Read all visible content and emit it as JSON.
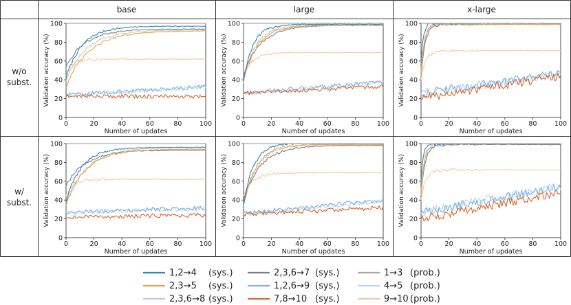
{
  "figure": {
    "columns": [
      "base",
      "large",
      "x-large"
    ],
    "rows": [
      {
        "line1": "w/o",
        "line2": "subst."
      },
      {
        "line1": "w/",
        "line2": "subst."
      }
    ],
    "reference_line_value": 100
  },
  "chart_data": {
    "type": "line",
    "xlabel": "Number of updates",
    "ylabel": "Validation accuracy (%)",
    "xlim": [
      0,
      100
    ],
    "ylim": [
      0,
      100
    ],
    "xticks": [
      "0",
      "20",
      "40",
      "60",
      "80",
      "100"
    ],
    "yticks": [
      "0",
      "20",
      "40",
      "60",
      "80",
      "100"
    ],
    "legend": [
      {
        "task": "1,2→4",
        "kind": "(sys.)",
        "color": "#2e86c1"
      },
      {
        "task": "2,3→5",
        "kind": "(sys.)",
        "color": "#f0a04b"
      },
      {
        "task": "2,3,6→8",
        "kind": "(sys.)",
        "color": "#c8c8c8"
      },
      {
        "task": "2,3,6→7",
        "kind": "(sys.)",
        "color": "#7f7f7f"
      },
      {
        "task": "1,2,6→9",
        "kind": "(sys.)",
        "color": "#7fb2e0"
      },
      {
        "task": "7,8→10",
        "kind": "(sys.)",
        "color": "#d9652b"
      },
      {
        "task": "1→3",
        "kind": "(prob.)",
        "color": "#a8a8a8"
      },
      {
        "task": "4→5",
        "kind": "(prob.)",
        "color": "#b8d6f2"
      },
      {
        "task": "9→10",
        "kind": "(prob.)",
        "color": "#f9c79b"
      }
    ],
    "panels": [
      {
        "row": "w/o subst.",
        "column": "base",
        "series": {
          "1,2→4 (sys.)": {
            "start": 42,
            "final": 97,
            "rate": 0.085
          },
          "2,3→5 (sys.)": {
            "start": 33,
            "final": 92,
            "rate": 0.06
          },
          "2,3,6→8 (sys.)": {
            "start": 40,
            "final": 93,
            "rate": 0.065
          },
          "2,3,6→7 (sys.)": {
            "start": 55,
            "final": 94,
            "rate": 0.07
          },
          "1,2,6→9 (sys.)": {
            "start": 24,
            "final": 33,
            "rate": 0.02
          },
          "7,8→10 (sys.)": {
            "start": 23,
            "final": 22,
            "rate": 0.05
          },
          "1→3 (prob.)": {
            "start": 100,
            "final": 100,
            "rate": 1.0
          },
          "4→5 (prob.)": {
            "start": 24,
            "final": 32,
            "rate": 0.02
          },
          "9→10 (prob.)": {
            "start": 45,
            "final": 62,
            "rate": 0.2
          }
        }
      },
      {
        "row": "w/o subst.",
        "column": "large",
        "series": {
          "1,2→4 (sys.)": {
            "start": 40,
            "final": 99,
            "rate": 0.14
          },
          "2,3→5 (sys.)": {
            "start": 38,
            "final": 98,
            "rate": 0.1
          },
          "2,3,6→8 (sys.)": {
            "start": 40,
            "final": 98,
            "rate": 0.11
          },
          "2,3,6→7 (sys.)": {
            "start": 45,
            "final": 98,
            "rate": 0.08
          },
          "1,2,6→9 (sys.)": {
            "start": 26,
            "final": 38,
            "rate": 0.02
          },
          "7,8→10 (sys.)": {
            "start": 26,
            "final": 33,
            "rate": 0.02
          },
          "1→3 (prob.)": {
            "start": 100,
            "final": 100,
            "rate": 1.0
          },
          "4→5 (prob.)": {
            "start": 25,
            "final": 37,
            "rate": 0.02
          },
          "9→10 (prob.)": {
            "start": 45,
            "final": 69,
            "rate": 0.15
          }
        }
      },
      {
        "row": "w/o subst.",
        "column": "x-large",
        "series": {
          "1,2→4 (sys.)": {
            "start": 60,
            "final": 100,
            "rate": 0.6
          },
          "2,3→5 (sys.)": {
            "start": 45,
            "final": 99,
            "rate": 0.45
          },
          "2,3,6→8 (sys.)": {
            "start": 50,
            "final": 99,
            "rate": 0.4
          },
          "2,3,6→7 (sys.)": {
            "start": 45,
            "final": 99,
            "rate": 0.35
          },
          "1,2,6→9 (sys.)": {
            "start": 26,
            "final": 47,
            "rate": 0.015
          },
          "7,8→10 (sys.)": {
            "start": 20,
            "final": 44,
            "rate": 0.015
          },
          "1→3 (prob.)": {
            "start": 100,
            "final": 100,
            "rate": 1.0
          },
          "4→5 (prob.)": {
            "start": 26,
            "final": 46,
            "rate": 0.015
          },
          "9→10 (prob.)": {
            "start": 40,
            "final": 71,
            "rate": 0.3
          }
        }
      },
      {
        "row": "w/ subst.",
        "column": "base",
        "series": {
          "1,2→4 (sys.)": {
            "start": 38,
            "final": 96,
            "rate": 0.09
          },
          "2,3→5 (sys.)": {
            "start": 35,
            "final": 94,
            "rate": 0.07
          },
          "2,3,6→8 (sys.)": {
            "start": 38,
            "final": 96,
            "rate": 0.065
          },
          "2,3,6→7 (sys.)": {
            "start": 55,
            "final": 93,
            "rate": 0.07
          },
          "1,2,6→9 (sys.)": {
            "start": 27,
            "final": 32,
            "rate": 0.02
          },
          "7,8→10 (sys.)": {
            "start": 22,
            "final": 24,
            "rate": 0.05
          },
          "1→3 (prob.)": {
            "start": 100,
            "final": 100,
            "rate": 1.0
          },
          "4→5 (prob.)": {
            "start": 27,
            "final": 31,
            "rate": 0.02
          },
          "9→10 (prob.)": {
            "start": 45,
            "final": 62,
            "rate": 0.2
          }
        }
      },
      {
        "row": "w/ subst.",
        "column": "large",
        "series": {
          "1,2→4 (sys.)": {
            "start": 35,
            "final": 100,
            "rate": 0.14
          },
          "2,3→5 (sys.)": {
            "start": 35,
            "final": 99,
            "rate": 0.11
          },
          "2,3,6→8 (sys.)": {
            "start": 35,
            "final": 99,
            "rate": 0.1
          },
          "2,3,6→7 (sys.)": {
            "start": 40,
            "final": 98,
            "rate": 0.08
          },
          "1,2,6→9 (sys.)": {
            "start": 26,
            "final": 40,
            "rate": 0.02
          },
          "7,8→10 (sys.)": {
            "start": 25,
            "final": 32,
            "rate": 0.02
          },
          "1→3 (prob.)": {
            "start": 100,
            "final": 100,
            "rate": 1.0
          },
          "4→5 (prob.)": {
            "start": 25,
            "final": 39,
            "rate": 0.02
          },
          "9→10 (prob.)": {
            "start": 45,
            "final": 69,
            "rate": 0.15
          }
        }
      },
      {
        "row": "w/ subst.",
        "column": "x-large",
        "series": {
          "1,2→4 (sys.)": {
            "start": 60,
            "final": 100,
            "rate": 0.6
          },
          "2,3→5 (sys.)": {
            "start": 45,
            "final": 100,
            "rate": 0.45
          },
          "2,3,6→8 (sys.)": {
            "start": 50,
            "final": 99,
            "rate": 0.4
          },
          "2,3,6→7 (sys.)": {
            "start": 45,
            "final": 99,
            "rate": 0.35
          },
          "1,2,6→9 (sys.)": {
            "start": 27,
            "final": 54,
            "rate": 0.015
          },
          "7,8→10 (sys.)": {
            "start": 20,
            "final": 48,
            "rate": 0.015
          },
          "1→3 (prob.)": {
            "start": 100,
            "final": 100,
            "rate": 1.0
          },
          "4→5 (prob.)": {
            "start": 27,
            "final": 55,
            "rate": 0.015
          },
          "9→10 (prob.)": {
            "start": 40,
            "final": 72,
            "rate": 0.3
          }
        }
      }
    ]
  }
}
